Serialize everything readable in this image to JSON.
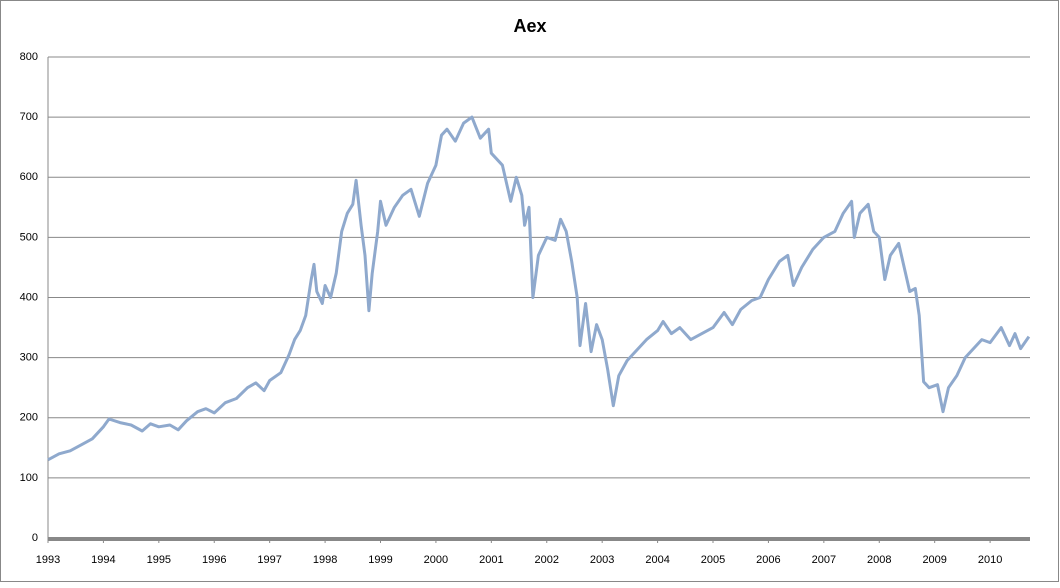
{
  "chart_data": {
    "type": "line",
    "title": "Aex",
    "x": [
      1993.0,
      1993.2,
      1993.4,
      1993.6,
      1993.8,
      1994.0,
      1994.1,
      1994.3,
      1994.5,
      1994.7,
      1994.85,
      1995.0,
      1995.2,
      1995.35,
      1995.5,
      1995.7,
      1995.85,
      1996.0,
      1996.2,
      1996.4,
      1996.6,
      1996.75,
      1996.9,
      1997.0,
      1997.2,
      1997.35,
      1997.45,
      1997.55,
      1997.65,
      1997.75,
      1997.8,
      1997.85,
      1997.95,
      1998.0,
      1998.1,
      1998.2,
      1998.3,
      1998.4,
      1998.5,
      1998.56,
      1998.65,
      1998.72,
      1998.79,
      1998.85,
      1998.95,
      1999.0,
      1999.1,
      1999.25,
      1999.4,
      1999.55,
      1999.7,
      1999.85,
      2000.0,
      2000.1,
      2000.2,
      2000.35,
      2000.5,
      2000.65,
      2000.8,
      2000.95,
      2001.0,
      2001.2,
      2001.35,
      2001.45,
      2001.55,
      2001.6,
      2001.68,
      2001.75,
      2001.85,
      2002.0,
      2002.15,
      2002.25,
      2002.35,
      2002.45,
      2002.55,
      2002.6,
      2002.7,
      2002.8,
      2002.9,
      2003.0,
      2003.1,
      2003.2,
      2003.3,
      2003.45,
      2003.6,
      2003.8,
      2004.0,
      2004.1,
      2004.25,
      2004.4,
      2004.6,
      2004.8,
      2005.0,
      2005.2,
      2005.35,
      2005.5,
      2005.7,
      2005.85,
      2006.0,
      2006.2,
      2006.35,
      2006.45,
      2006.6,
      2006.8,
      2007.0,
      2007.2,
      2007.35,
      2007.5,
      2007.55,
      2007.65,
      2007.8,
      2007.9,
      2008.0,
      2008.1,
      2008.2,
      2008.35,
      2008.45,
      2008.55,
      2008.65,
      2008.72,
      2008.8,
      2008.9,
      2009.05,
      2009.15,
      2009.25,
      2009.4,
      2009.55,
      2009.7,
      2009.85,
      2010.0,
      2010.2,
      2010.35,
      2010.45,
      2010.55,
      2010.7
    ],
    "values": [
      130,
      140,
      145,
      155,
      165,
      185,
      198,
      192,
      188,
      178,
      190,
      185,
      188,
      180,
      195,
      210,
      215,
      208,
      225,
      232,
      250,
      258,
      245,
      262,
      275,
      305,
      330,
      345,
      370,
      430,
      455,
      410,
      390,
      420,
      400,
      440,
      510,
      540,
      555,
      595,
      520,
      470,
      378,
      440,
      510,
      560,
      520,
      550,
      570,
      580,
      535,
      590,
      620,
      670,
      680,
      660,
      690,
      700,
      665,
      680,
      640,
      620,
      560,
      600,
      570,
      520,
      550,
      400,
      470,
      500,
      495,
      530,
      510,
      460,
      400,
      320,
      390,
      310,
      355,
      330,
      280,
      220,
      270,
      295,
      310,
      330,
      345,
      360,
      340,
      350,
      330,
      340,
      350,
      375,
      355,
      380,
      395,
      400,
      430,
      460,
      470,
      420,
      450,
      480,
      500,
      510,
      540,
      560,
      500,
      540,
      555,
      510,
      500,
      430,
      470,
      490,
      450,
      410,
      415,
      370,
      260,
      250,
      255,
      210,
      250,
      270,
      300,
      315,
      330,
      325,
      350,
      320,
      340,
      315,
      335
    ],
    "color": "#8fa9cd",
    "xlim": [
      1993,
      2010.72
    ],
    "xticks": [
      1993,
      1994,
      1995,
      1996,
      1997,
      1998,
      1999,
      2000,
      2001,
      2002,
      2003,
      2004,
      2005,
      2006,
      2007,
      2008,
      2009,
      2010
    ],
    "ylim": [
      0,
      800
    ],
    "yticks": [
      0,
      100,
      200,
      300,
      400,
      500,
      600,
      700,
      800
    ],
    "grid": true
  }
}
